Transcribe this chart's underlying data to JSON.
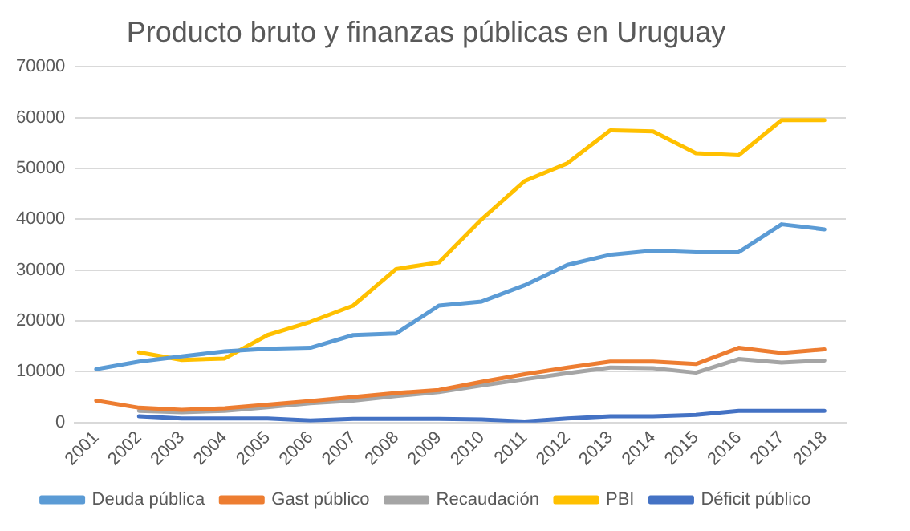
{
  "chart_data": {
    "type": "line",
    "title": "Producto bruto y finanzas públicas en Uruguay",
    "categories": [
      "2001",
      "2002",
      "2003",
      "2004",
      "2005",
      "2006",
      "2007",
      "2008",
      "2009",
      "2010",
      "2011",
      "2012",
      "2013",
      "2014",
      "2015",
      "2016",
      "2017",
      "2018"
    ],
    "series": [
      {
        "name": "Deuda pública",
        "color": "#5b9bd5",
        "values": [
          10500,
          12000,
          13000,
          14000,
          14500,
          14700,
          17200,
          17500,
          23000,
          23800,
          27000,
          31000,
          33000,
          33800,
          33500,
          33500,
          39000,
          38000
        ]
      },
      {
        "name": "Gast público",
        "color": "#ed7d31",
        "values": [
          4300,
          2900,
          2500,
          2800,
          3500,
          4200,
          5000,
          5800,
          6400,
          8000,
          9500,
          10800,
          12000,
          12000,
          11500,
          14700,
          13700,
          14400
        ]
      },
      {
        "name": "Recaudación",
        "color": "#a5a5a5",
        "values": [
          null,
          2300,
          2000,
          2300,
          3000,
          3800,
          4300,
          5200,
          6000,
          7300,
          8500,
          9700,
          10800,
          10700,
          9800,
          12500,
          11800,
          12200
        ]
      },
      {
        "name": "PBI",
        "color": "#ffc000",
        "values": [
          null,
          13800,
          12300,
          12600,
          17200,
          19800,
          23000,
          30200,
          31500,
          40000,
          47500,
          51000,
          57500,
          57300,
          53000,
          52600,
          59500,
          59500
        ]
      },
      {
        "name": "Déficit público",
        "color": "#4472c4",
        "values": [
          null,
          1200,
          800,
          800,
          800,
          400,
          700,
          700,
          700,
          600,
          200,
          800,
          1200,
          1200,
          1500,
          2300,
          2300,
          2300
        ]
      }
    ],
    "ylim": [
      0,
      70000
    ],
    "yticks": [
      0,
      10000,
      20000,
      30000,
      40000,
      50000,
      60000,
      70000
    ],
    "grid": "y",
    "legend": "bottom",
    "marker": "none",
    "line_style": "solid"
  }
}
